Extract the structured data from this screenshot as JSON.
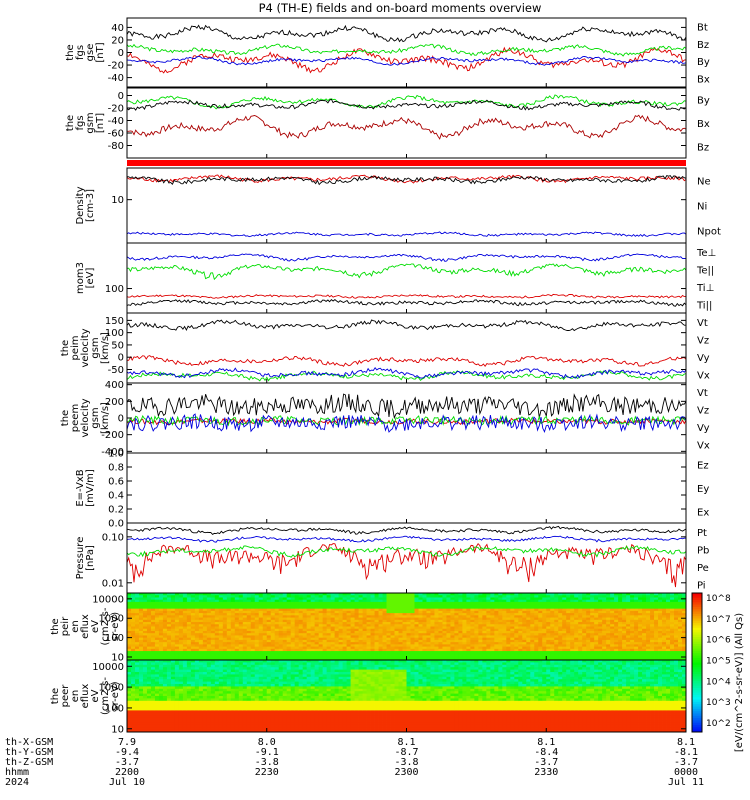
{
  "title": "P4 (TH-E) fields and on-board moments overview",
  "footer": {
    "rows": [
      {
        "label": "th-X-GSM",
        "values": [
          "7.9",
          "8.0",
          "8.1",
          "8.1",
          "8.1"
        ]
      },
      {
        "label": "th-Y-GSM",
        "values": [
          "-9.4",
          "-9.1",
          "-8.7",
          "-8.4",
          "-8.1"
        ]
      },
      {
        "label": "th-Z-GSM",
        "values": [
          "-3.7",
          "-3.8",
          "-3.8",
          "-3.7",
          "-3.7"
        ]
      },
      {
        "label": "hhmm",
        "values": [
          "2200",
          "2230",
          "2300",
          "2330",
          "0000"
        ]
      },
      {
        "label": "2024",
        "values": [
          "Jul 10",
          "",
          "",
          "",
          "Jul 11"
        ]
      }
    ]
  },
  "chart_data": [
    {
      "type": "line",
      "ylabel": [
        "the",
        "fgs",
        "gse",
        "[nT]"
      ],
      "ylim": [
        -55,
        55
      ],
      "yticks": [
        {
          "v": 40,
          "label": "40"
        },
        {
          "v": 20,
          "label": "20"
        },
        {
          "v": 0,
          "label": "0"
        },
        {
          "v": -20,
          "label": "-20"
        },
        {
          "v": -40,
          "label": "-40"
        }
      ],
      "series": [
        {
          "name": "Bt",
          "color": "#000000",
          "base": 30,
          "amp": 11,
          "noise": 4,
          "seed": 1
        },
        {
          "name": "Bz",
          "color": "#dd0000",
          "base": -12,
          "amp": 16,
          "noise": 5,
          "seed": 2
        },
        {
          "name": "By",
          "color": "#00dd00",
          "base": 4,
          "amp": 7,
          "noise": 3,
          "seed": 3
        },
        {
          "name": "Bx",
          "color": "#0000dd",
          "base": -13,
          "amp": 6,
          "noise": 2,
          "seed": 4
        }
      ]
    },
    {
      "type": "line",
      "ylabel": [
        "the",
        "fgs",
        "gsm",
        "[nT]"
      ],
      "ylim": [
        -100,
        12
      ],
      "yticks": [
        {
          "v": 0,
          "label": "0"
        },
        {
          "v": -20,
          "label": "-20"
        },
        {
          "v": -40,
          "label": "-40"
        },
        {
          "v": -60,
          "label": "-60"
        },
        {
          "v": -80,
          "label": "-80"
        }
      ],
      "series": [
        {
          "name": "By",
          "color": "#00dd00",
          "base": -10,
          "amp": 9,
          "noise": 3,
          "seed": 5
        },
        {
          "name": "Bx",
          "color": "#000000",
          "base": -15,
          "amp": 6,
          "noise": 3,
          "seed": 6
        },
        {
          "name": "Bz",
          "color": "#aa0000",
          "base": -50,
          "amp": 16,
          "noise": 5,
          "seed": 7
        }
      ]
    },
    {
      "type": "line",
      "ylabel": [
        "Density",
        "[cm-3]"
      ],
      "log": true,
      "ylim": [
        1.5,
        40
      ],
      "yticks": [
        {
          "v": 10,
          "label": "10"
        }
      ],
      "series": [
        {
          "name": "Ne",
          "color": "#dd0000",
          "base": 25,
          "amp": 3,
          "noise": 2,
          "seed": 8
        },
        {
          "name": "Ni",
          "color": "#000000",
          "base": 24,
          "amp": 3,
          "noise": 2,
          "seed": 9
        },
        {
          "name": "Npot",
          "color": "#0000dd",
          "base": 2.2,
          "amp": 0.15,
          "noise": 0.1,
          "seed": 10
        }
      ]
    },
    {
      "type": "line",
      "ylabel": [
        "mom3",
        "[eV]"
      ],
      "log": true,
      "ylim": [
        20,
        2000
      ],
      "yticks": [
        {
          "v": 100,
          "label": "100"
        }
      ],
      "series": [
        {
          "name": "Te⊥",
          "color": "#dd0000",
          "base": 60,
          "amp": 5,
          "noise": 4,
          "seed": 11
        },
        {
          "name": "Te||",
          "color": "#000000",
          "base": 40,
          "amp": 5,
          "noise": 4,
          "seed": 12
        },
        {
          "name": "Ti⊥",
          "color": "#0000dd",
          "base": 800,
          "amp": 150,
          "noise": 60,
          "seed": 13
        },
        {
          "name": "Ti||",
          "color": "#00dd00",
          "base": 350,
          "amp": 120,
          "noise": 50,
          "seed": 14
        }
      ]
    },
    {
      "type": "line",
      "ylabel": [
        "the",
        "peim",
        "velocity",
        "gsm",
        "[km/s]"
      ],
      "ylim": [
        -105,
        180
      ],
      "yticks": [
        {
          "v": 150,
          "label": "150"
        },
        {
          "v": 100,
          "label": "100"
        },
        {
          "v": 50,
          "label": "50"
        },
        {
          "v": 0,
          "label": "0"
        },
        {
          "v": -50,
          "label": "-50"
        }
      ],
      "series": [
        {
          "name": "Vt",
          "color": "#000000",
          "base": 130,
          "amp": 15,
          "noise": 8,
          "seed": 15
        },
        {
          "name": "Vz",
          "color": "#dd0000",
          "base": -15,
          "amp": 15,
          "noise": 8,
          "seed": 16
        },
        {
          "name": "Vy",
          "color": "#00dd00",
          "base": -75,
          "amp": 15,
          "noise": 8,
          "seed": 17
        },
        {
          "name": "Vx",
          "color": "#0000dd",
          "base": -65,
          "amp": 15,
          "noise": 8,
          "seed": 18
        }
      ]
    },
    {
      "type": "line",
      "ylabel": [
        "the",
        "peem",
        "velocity",
        "gsm",
        "[km/s]"
      ],
      "ylim": [
        -420,
        420
      ],
      "yticks": [
        {
          "v": 400,
          "label": "400"
        },
        {
          "v": 200,
          "label": "200"
        },
        {
          "v": 0,
          "label": "0"
        },
        {
          "v": -200,
          "label": "-200"
        },
        {
          "v": -400,
          "label": "-400"
        }
      ],
      "series": [
        {
          "name": "Vt",
          "color": "#000000",
          "base": 150,
          "amp": 40,
          "noise": 110,
          "seed": 19
        },
        {
          "name": "Vz",
          "color": "#dd0000",
          "base": -40,
          "amp": 10,
          "noise": 30,
          "seed": 20
        },
        {
          "name": "Vy",
          "color": "#00dd00",
          "base": -30,
          "amp": 10,
          "noise": 50,
          "seed": 21
        },
        {
          "name": "Vx",
          "color": "#0000dd",
          "base": -60,
          "amp": 20,
          "noise": 90,
          "seed": 22
        }
      ]
    },
    {
      "type": "line",
      "ylabel": [
        "E=-VxB",
        "[mV/m]"
      ],
      "ylim": [
        0,
        1.0
      ],
      "yticks": [
        {
          "v": 1.0,
          "label": "1.0"
        },
        {
          "v": 0.8,
          "label": "0.8"
        },
        {
          "v": 0.6,
          "label": "0.6"
        },
        {
          "v": 0.4,
          "label": "0.4"
        },
        {
          "v": 0.2,
          "label": "0.2"
        },
        {
          "v": 0.0,
          "label": "0.0"
        }
      ],
      "series": [
        {
          "name": "Ez",
          "color": "#dd0000"
        },
        {
          "name": "Ey",
          "color": "#00dd00"
        },
        {
          "name": "Ex",
          "color": "#0000dd"
        }
      ]
    },
    {
      "type": "line",
      "ylabel": [
        "Pressure",
        "[nPa]"
      ],
      "log": true,
      "ylim": [
        0.006,
        0.2
      ],
      "yticks": [
        {
          "v": 0.1,
          "label": "0.10"
        },
        {
          "v": 0.01,
          "label": "0.01"
        }
      ],
      "series": [
        {
          "name": "Pt",
          "color": "#000000",
          "base": 0.14,
          "amp": 0.02,
          "noise": 0.01,
          "seed": 23
        },
        {
          "name": "Pb",
          "color": "#dd0000",
          "base": 0.04,
          "amp": 0.02,
          "noise": 0.015,
          "seed": 24
        },
        {
          "name": "Pe",
          "color": "#00dd00",
          "base": 0.05,
          "amp": 0.01,
          "noise": 0.005,
          "seed": 25
        },
        {
          "name": "Pi",
          "color": "#0000dd",
          "base": 0.09,
          "amp": 0.01,
          "noise": 0.005,
          "seed": 26
        }
      ]
    },
    {
      "type": "heatmap",
      "ylabel": [
        "the",
        "peir",
        "en",
        "eflux",
        "eV",
        "(cm2-s-",
        "sr-eV)"
      ],
      "log": true,
      "ylim": [
        7,
        20000
      ],
      "yticks": [
        {
          "v": 10000,
          "label": "10000"
        },
        {
          "v": 1000,
          "label": "1000"
        },
        {
          "v": 100,
          "label": "100"
        },
        {
          "v": 10,
          "label": "10"
        }
      ]
    },
    {
      "type": "heatmap",
      "ylabel": [
        "the",
        "peer",
        "en",
        "eflux",
        "eV",
        "(cm2-s-",
        "sr-eV)"
      ],
      "log": true,
      "ylim": [
        7,
        20000
      ],
      "yticks": [
        {
          "v": 10000,
          "label": "10000"
        },
        {
          "v": 1000,
          "label": "1000"
        },
        {
          "v": 100,
          "label": "100"
        },
        {
          "v": 10,
          "label": "10"
        }
      ]
    }
  ],
  "colorbar": {
    "label": "[eV/(cm^2-s-sr-eV)] (All Qs)",
    "ticks": [
      "10^8",
      "10^7",
      "10^6",
      "10^5",
      "10^4",
      "10^3",
      "10^2"
    ]
  }
}
